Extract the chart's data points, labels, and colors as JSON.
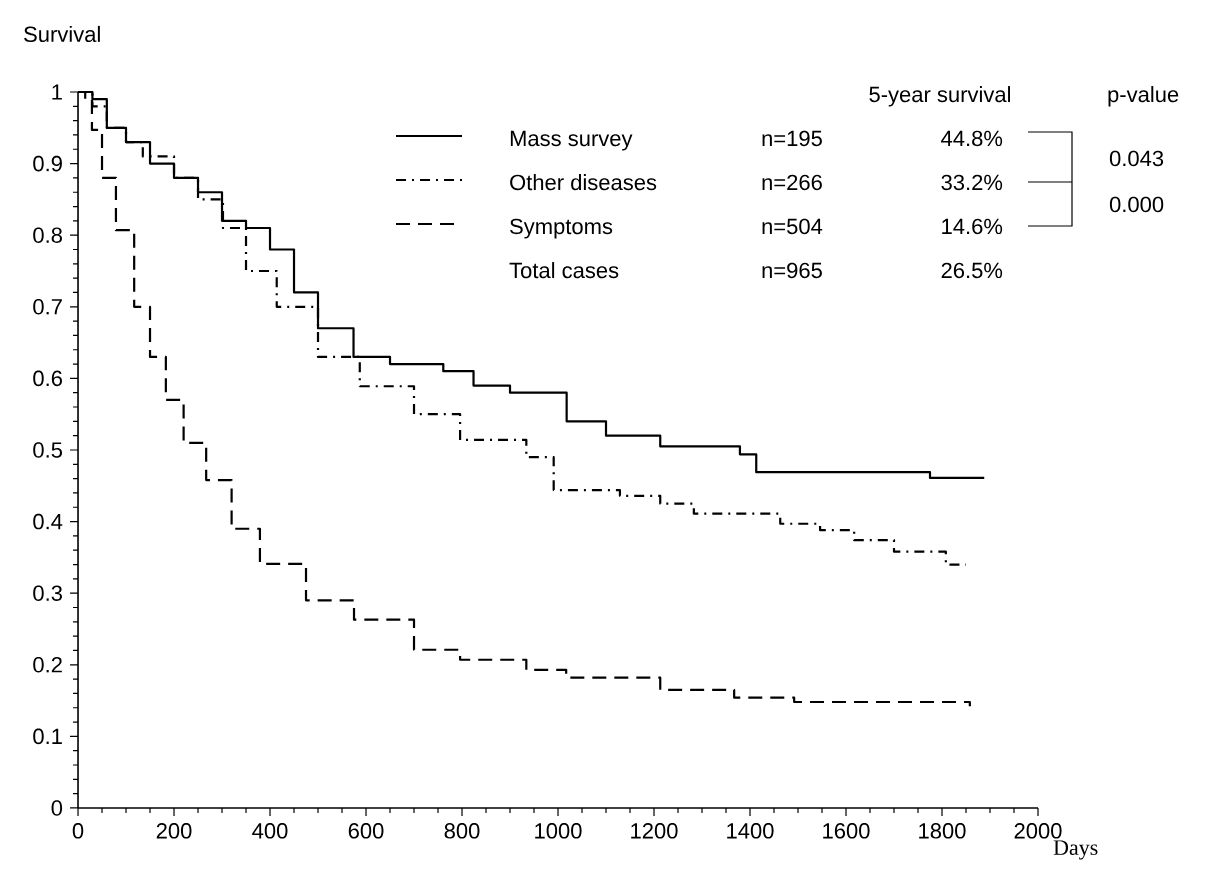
{
  "chart_data": {
    "type": "step",
    "xlabel": "Days",
    "ylabel": "Survival",
    "xlim": [
      0,
      2000
    ],
    "ylim": [
      0,
      1
    ],
    "xticks": [
      0,
      200,
      400,
      600,
      800,
      1000,
      1200,
      1400,
      1600,
      1800,
      2000
    ],
    "yticks": [
      0,
      0.1,
      0.2,
      0.3,
      0.4,
      0.5,
      0.6,
      0.7,
      0.8,
      0.9,
      1
    ],
    "grid": false,
    "legend": "top right",
    "series": [
      {
        "name": "Mass survey",
        "color": "#000000",
        "line_style": "solid",
        "x": [
          0,
          30,
          60,
          100,
          150,
          200,
          250,
          300,
          350,
          400,
          450,
          500,
          574,
          650,
          761,
          824,
          900,
          1018,
          1100,
          1213,
          1330,
          1379,
          1413,
          1704,
          1775,
          1888
        ],
        "values": [
          1,
          0.99,
          0.95,
          0.93,
          0.9,
          0.88,
          0.86,
          0.82,
          0.81,
          0.78,
          0.72,
          0.67,
          0.63,
          0.62,
          0.61,
          0.59,
          0.58,
          0.54,
          0.52,
          0.505,
          0.505,
          0.494,
          0.469,
          0.469,
          0.461,
          0.461
        ]
      },
      {
        "name": "Other diseases",
        "color": "#000000",
        "line_style": "dashdot",
        "x": [
          0,
          30,
          60,
          100,
          135,
          200,
          250,
          302,
          350,
          414,
          500,
          587,
          700,
          796,
          934,
          991,
          1129,
          1213,
          1283,
          1463,
          1546,
          1617,
          1700,
          1808,
          1850
        ],
        "values": [
          1,
          0.98,
          0.95,
          0.93,
          0.91,
          0.88,
          0.85,
          0.81,
          0.75,
          0.7,
          0.63,
          0.589,
          0.55,
          0.514,
          0.49,
          0.444,
          0.436,
          0.425,
          0.411,
          0.397,
          0.388,
          0.374,
          0.358,
          0.34,
          0.34
        ]
      },
      {
        "name": "Symptoms",
        "color": "#000000",
        "line_style": "dashed",
        "x": [
          0,
          15,
          29,
          50,
          79,
          117,
          150,
          183,
          220,
          267,
          320,
          379,
          475,
          575,
          700,
          796,
          934,
          1017,
          1213,
          1367,
          1492,
          1808,
          1858
        ],
        "values": [
          1,
          0.99,
          0.947,
          0.88,
          0.807,
          0.7,
          0.63,
          0.57,
          0.51,
          0.458,
          0.39,
          0.341,
          0.29,
          0.263,
          0.221,
          0.207,
          0.193,
          0.182,
          0.165,
          0.154,
          0.148,
          0.148,
          0.142
        ]
      }
    ],
    "annotations": [
      "5-year survival",
      "p-value",
      "n=195",
      "n=266",
      "n=504",
      "44.8%",
      "33.2%",
      "14.6%",
      "Total cases",
      "n=965",
      "26.5%",
      "0.043",
      "0.000"
    ]
  }
}
